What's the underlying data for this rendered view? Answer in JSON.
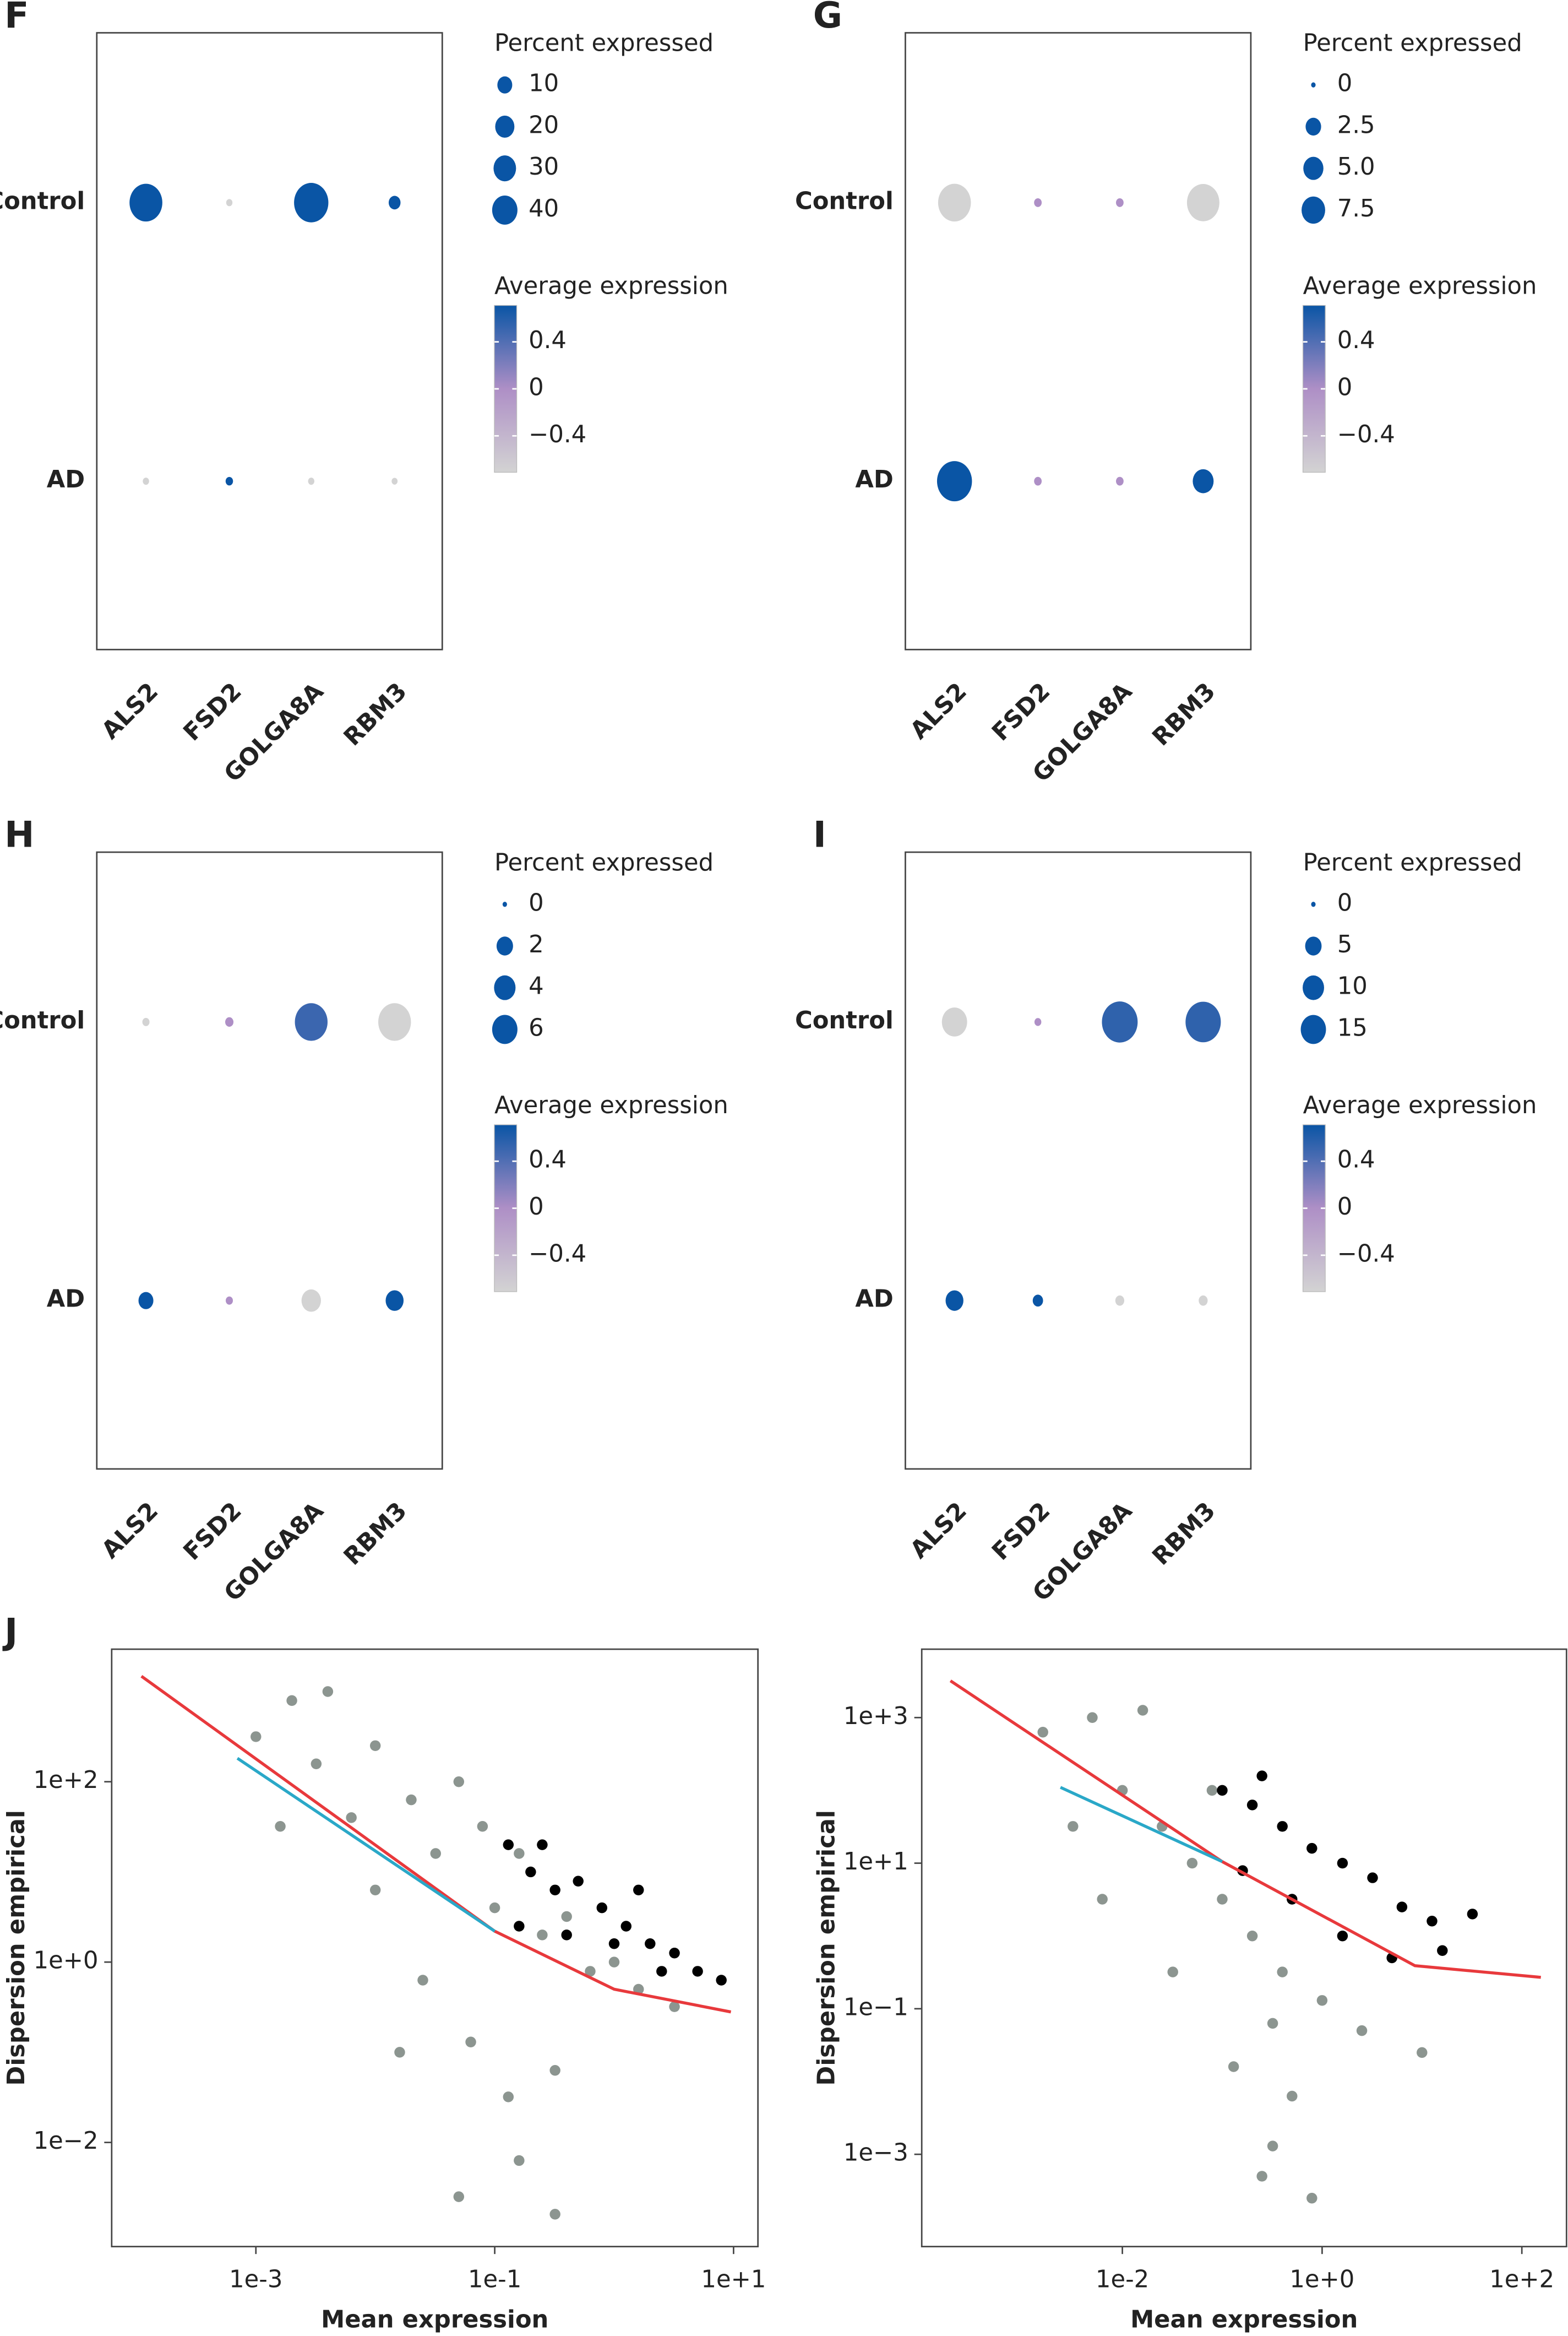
{
  "chart_data": [
    {
      "type": "dot",
      "title": "F",
      "categories": [
        "ALS2",
        "FSD2",
        "GOLGA8A",
        "RBM3"
      ],
      "series": [
        {
          "name": "Control",
          "values": [
            0.71,
            -0.71,
            0.71,
            0.71
          ],
          "sizes": [
            74,
            0.3,
            82,
            5
          ]
        },
        {
          "name": "AD",
          "values": [
            -0.71,
            0.71,
            -0.71,
            -0.71
          ],
          "sizes": [
            0.3,
            0.8,
            0.3,
            0.2
          ]
        }
      ],
      "slim": [
        0,
        90
      ],
      "size_title": "Percent expressed",
      "size_ticks": [
        10,
        20,
        30,
        40
      ],
      "color_title": "Average expression",
      "clim": [
        -0.71,
        0.71
      ],
      "cticks": [
        0.4,
        0,
        {
          "value": -0.4,
          "label": "−0.4"
        }
      ],
      "colors": [
        "#d3d3d3",
        "#ae8fc6",
        "#0a55a5"
      ]
    },
    {
      "type": "dot",
      "title": "G",
      "categories": [
        "ALS2",
        "FSD2",
        "GOLGA8A",
        "RBM3"
      ],
      "series": [
        {
          "name": "Control",
          "values": [
            -0.71,
            0,
            0,
            -0.71
          ],
          "sizes": [
            16.4,
            0.2,
            0.2,
            16
          ]
        },
        {
          "name": "AD",
          "values": [
            0.71,
            0,
            0,
            0.71
          ],
          "sizes": [
            19,
            0.2,
            0.2,
            5.5
          ]
        }
      ],
      "slim": [
        0,
        20
      ],
      "size_title": "Percent expressed",
      "size_ticks": [
        0,
        2.5,
        {
          "value": 5,
          "label": "5.0"
        },
        7.5
      ],
      "color_title": "Average expression",
      "clim": [
        -0.71,
        0.71
      ],
      "cticks": [
        0.4,
        0,
        {
          "value": -0.4,
          "label": "−0.4"
        }
      ],
      "colors": [
        "#d3d3d3",
        "#ae8fc6",
        "#0a55a5"
      ]
    },
    {
      "type": "dot",
      "title": "H",
      "categories": [
        "ALS2",
        "FSD2",
        "GOLGA8A",
        "RBM3"
      ],
      "series": [
        {
          "name": "Control",
          "values": [
            -0.71,
            0,
            0.5,
            -0.71
          ],
          "sizes": [
            0.1,
            0.2,
            11,
            11
          ]
        },
        {
          "name": "AD",
          "values": [
            0.71,
            0,
            -0.71,
            0.71
          ],
          "sizes": [
            1.5,
            0.1,
            3.1,
            2.5
          ]
        }
      ],
      "slim": [
        0,
        13.5
      ],
      "size_title": "Percent expressed",
      "size_ticks": [
        0,
        2,
        4,
        6
      ],
      "color_title": "Average expression",
      "clim": [
        -0.71,
        0.71
      ],
      "cticks": [
        0.4,
        0,
        {
          "value": -0.4,
          "label": "−0.4"
        }
      ],
      "colors": [
        "#d3d3d3",
        "#ae8fc6",
        "#0a55a5"
      ]
    },
    {
      "type": "dot",
      "title": "I",
      "categories": [
        "ALS2",
        "FSD2",
        "GOLGA8A",
        "RBM3"
      ],
      "series": [
        {
          "name": "Control",
          "values": [
            -0.71,
            0,
            0.55,
            0.55
          ],
          "sizes": [
            15,
            0.2,
            34,
            33
          ]
        },
        {
          "name": "AD",
          "values": [
            0.71,
            0.71,
            -0.71,
            -0.71
          ],
          "sizes": [
            6.2,
            1.2,
            0.7,
            0.7
          ]
        }
      ],
      "slim": [
        0,
        34
      ],
      "size_title": "Percent expressed",
      "size_ticks": [
        0,
        5,
        10,
        15
      ],
      "color_title": "Average expression",
      "clim": [
        -0.71,
        0.71
      ],
      "cticks": [
        0.4,
        0,
        {
          "value": -0.4,
          "label": "−0.4"
        }
      ],
      "colors": [
        "#d3d3d3",
        "#ae8fc6",
        "#0a55a5"
      ]
    },
    {
      "type": "scatter",
      "title": "J",
      "x_label": "Mean expression",
      "y_label": "Dispersion empirical",
      "xlog": true,
      "ylog": true,
      "xlim": [
        6.2e-05,
        16
      ],
      "ylim": [
        0.0007,
        2950
      ],
      "xticks": [
        {
          "value": 0.001,
          "label": "1e-3"
        },
        {
          "value": 0.1,
          "label": "1e-1"
        },
        {
          "value": 10,
          "label": "1e+1"
        }
      ],
      "yticks": [
        {
          "value": 100,
          "label": "1e+2"
        },
        {
          "value": 1,
          "label": "1e+0"
        },
        {
          "value": 0.01,
          "label": "1e−2"
        }
      ],
      "series": [
        {
          "color": "#8c9590",
          "kind": "points",
          "x": [
            0.001,
            0.002,
            0.004,
            0.0032,
            0.0063,
            0.01,
            0.02,
            0.032,
            0.05,
            0.079,
            0.1,
            0.16,
            0.25,
            0.4,
            0.63,
            1,
            1.6,
            0.01,
            0.025,
            0.063,
            0.13,
            0.32,
            0.16,
            0.05,
            0.32,
            0.0016,
            0.016,
            3.2
          ],
          "values": [
            316,
            794,
            1000,
            158,
            40,
            251,
            63,
            16,
            100,
            32,
            4,
            16,
            2,
            3.2,
            0.79,
            1,
            0.5,
            6.3,
            0.63,
            0.13,
            0.032,
            0.063,
            0.0063,
            0.0025,
            0.0016,
            32,
            0.1,
            0.32
          ]
        },
        {
          "color": "#000000",
          "kind": "points",
          "x": [
            0.13,
            0.2,
            0.32,
            0.5,
            0.79,
            1.26,
            2,
            3.2,
            5,
            7.9,
            0.16,
            0.4,
            1,
            2.5,
            0.25,
            1.6
          ],
          "values": [
            20,
            10,
            6.3,
            7.9,
            4,
            2.5,
            1.6,
            1.26,
            0.79,
            0.63,
            2.5,
            2,
            1.6,
            0.79,
            20,
            6.3
          ]
        },
        {
          "color": "#e8393c",
          "kind": "line",
          "x": [
            0.00011,
            0.1,
            1,
            9.5
          ],
          "values": [
            1480,
            2.2,
            0.5,
            0.28
          ]
        },
        {
          "color": "#2aa8c8",
          "kind": "line",
          "x": [
            0.0007,
            0.1
          ],
          "values": [
            182,
            2.2
          ]
        }
      ]
    },
    {
      "type": "scatter",
      "x_label": "Mean expression",
      "y_label": "Dispersion empirical",
      "xlog": true,
      "ylog": true,
      "xlim": [
        9.8e-05,
        280
      ],
      "ylim": [
        5.4e-05,
        8700
      ],
      "xticks": [
        {
          "value": 0.01,
          "label": "1e-2"
        },
        {
          "value": 1,
          "label": "1e+0"
        },
        {
          "value": 100,
          "label": "1e+2"
        }
      ],
      "yticks": [
        {
          "value": 1000,
          "label": "1e+3"
        },
        {
          "value": 10,
          "label": "1e+1"
        },
        {
          "value": 0.1,
          "label": "1e−1"
        },
        {
          "value": 0.001,
          "label": "1e−3"
        }
      ],
      "series": [
        {
          "color": "#8c9590",
          "kind": "points",
          "x": [
            0.0016,
            0.005,
            0.016,
            0.0032,
            0.01,
            0.025,
            0.05,
            0.1,
            0.2,
            0.4,
            1,
            2.5,
            0.13,
            0.5,
            0.32,
            0.79,
            0.0063,
            0.032,
            0.32,
            0.079,
            0.25,
            10
          ],
          "values": [
            630,
            1000,
            1260,
            32,
            100,
            32,
            10,
            3.2,
            1,
            0.32,
            0.13,
            0.05,
            0.016,
            0.0063,
            0.0013,
            0.00025,
            3.2,
            0.32,
            0.063,
            100,
            0.0005,
            0.025
          ]
        },
        {
          "color": "#000000",
          "kind": "points",
          "x": [
            0.1,
            0.2,
            0.4,
            0.79,
            1.6,
            3.2,
            6.3,
            12.6,
            32,
            0.16,
            0.5,
            1.6,
            5,
            16,
            0.25
          ],
          "values": [
            100,
            63,
            32,
            16,
            10,
            6.3,
            2.5,
            1.6,
            2,
            7.9,
            3.2,
            1,
            0.5,
            0.63,
            158
          ]
        },
        {
          "color": "#e8393c",
          "kind": "line",
          "x": [
            0.00019,
            0.1,
            8.5,
            155
          ],
          "values": [
            3200,
            10.5,
            0.39,
            0.27
          ]
        },
        {
          "color": "#2aa8c8",
          "kind": "line",
          "x": [
            0.0024,
            0.1
          ],
          "values": [
            110,
            10.5
          ]
        }
      ]
    }
  ]
}
